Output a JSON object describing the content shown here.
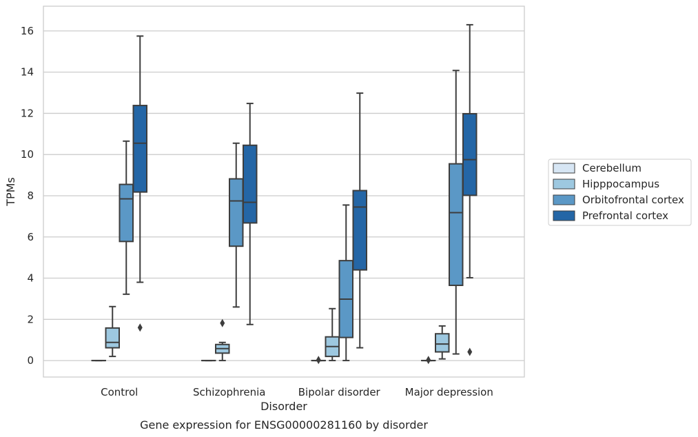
{
  "chart_data": {
    "type": "box",
    "title": "Gene expression for ENSG00000281160 by disorder",
    "xlabel": "Disorder",
    "ylabel": "TPMs",
    "ylim": [
      -0.8,
      17.2
    ],
    "yticks": [
      0,
      2,
      4,
      6,
      8,
      10,
      12,
      14,
      16
    ],
    "grid": true,
    "legend_position": "right",
    "categories": [
      "Control",
      "Schizophrenia",
      "Bipolar disorder",
      "Major depression"
    ],
    "series": [
      {
        "name": "Cerebellum",
        "color": "#d7e6f4",
        "boxes": [
          {
            "min": 0,
            "q1": 0,
            "median": 0,
            "q3": 0,
            "max": 0,
            "outliers": []
          },
          {
            "min": 0,
            "q1": 0,
            "median": 0,
            "q3": 0,
            "max": 0,
            "outliers": []
          },
          {
            "min": 0,
            "q1": 0,
            "median": 0,
            "q3": 0,
            "max": 0,
            "outliers": [
              0.03
            ]
          },
          {
            "min": 0,
            "q1": 0,
            "median": 0,
            "q3": 0,
            "max": 0,
            "outliers": [
              0.03
            ]
          }
        ]
      },
      {
        "name": "Hipppocampus",
        "color": "#9dc8e0",
        "boxes": [
          {
            "min": 0.2,
            "q1": 0.62,
            "median": 0.88,
            "q3": 1.58,
            "max": 2.62,
            "outliers": []
          },
          {
            "min": 0,
            "q1": 0.36,
            "median": 0.58,
            "q3": 0.78,
            "max": 0.88,
            "outliers": [
              1.82
            ]
          },
          {
            "min": 0,
            "q1": 0.2,
            "median": 0.68,
            "q3": 1.15,
            "max": 2.52,
            "outliers": []
          },
          {
            "min": 0.08,
            "q1": 0.42,
            "median": 0.8,
            "q3": 1.3,
            "max": 1.68,
            "outliers": []
          }
        ]
      },
      {
        "name": "Orbitofrontal cortex",
        "color": "#5b98c6",
        "boxes": [
          {
            "min": 3.22,
            "q1": 5.78,
            "median": 7.85,
            "q3": 8.55,
            "max": 10.65,
            "outliers": []
          },
          {
            "min": 2.6,
            "q1": 5.55,
            "median": 7.75,
            "q3": 8.82,
            "max": 10.55,
            "outliers": []
          },
          {
            "min": 0,
            "q1": 1.12,
            "median": 2.98,
            "q3": 4.85,
            "max": 7.55,
            "outliers": []
          },
          {
            "min": 0.32,
            "q1": 3.65,
            "median": 7.18,
            "q3": 9.55,
            "max": 14.08,
            "outliers": []
          }
        ]
      },
      {
        "name": "Prefrontal cortex",
        "color": "#2466a6",
        "boxes": [
          {
            "min": 3.8,
            "q1": 8.18,
            "median": 10.55,
            "q3": 12.38,
            "max": 15.75,
            "outliers": [
              1.6
            ]
          },
          {
            "min": 1.75,
            "q1": 6.68,
            "median": 7.68,
            "q3": 10.45,
            "max": 12.48,
            "outliers": []
          },
          {
            "min": 0.62,
            "q1": 4.4,
            "median": 7.45,
            "q3": 8.25,
            "max": 12.98,
            "outliers": []
          },
          {
            "min": 4.02,
            "q1": 8.02,
            "median": 9.75,
            "q3": 11.98,
            "max": 16.3,
            "outliers": [
              0.42
            ]
          }
        ]
      }
    ]
  }
}
